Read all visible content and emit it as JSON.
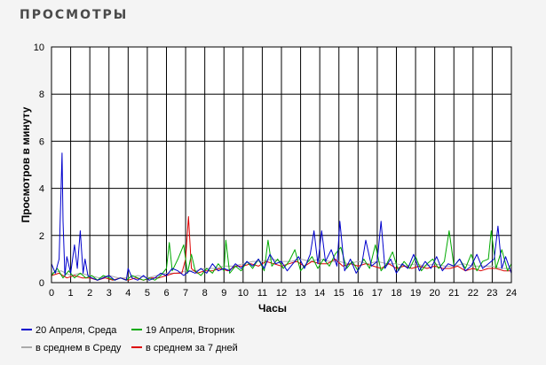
{
  "header": {
    "title": "ПРОСМОТРЫ"
  },
  "chart_data": {
    "type": "line",
    "xlabel": "Часы",
    "ylabel": "Просмотров в минуту",
    "xlim": [
      0,
      24
    ],
    "ylim": [
      0,
      10
    ],
    "x_ticks": [
      0,
      1,
      2,
      3,
      4,
      5,
      6,
      7,
      8,
      9,
      10,
      11,
      12,
      13,
      14,
      15,
      16,
      17,
      18,
      19,
      20,
      21,
      22,
      23,
      24
    ],
    "y_ticks": [
      0,
      2,
      4,
      6,
      8,
      10
    ],
    "grid": true,
    "legend_position": "bottom",
    "series": [
      {
        "name": "20 Апреля, Среда",
        "color": "#0000cc",
        "x": [
          0,
          0.2,
          0.4,
          0.55,
          0.6,
          0.7,
          0.8,
          1.0,
          1.2,
          1.35,
          1.5,
          1.65,
          1.75,
          1.9,
          2.1,
          2.4,
          2.7,
          3.0,
          3.3,
          3.6,
          3.9,
          4.0,
          4.2,
          4.5,
          4.8,
          5.1,
          5.4,
          5.7,
          6.0,
          6.3,
          6.6,
          6.9,
          7.2,
          7.5,
          7.8,
          8.1,
          8.4,
          8.7,
          9.0,
          9.3,
          9.6,
          9.9,
          10.2,
          10.5,
          10.8,
          11.1,
          11.4,
          11.7,
          12.0,
          12.3,
          12.6,
          12.9,
          13.2,
          13.5,
          13.7,
          13.9,
          14.1,
          14.3,
          14.6,
          14.9,
          15.05,
          15.3,
          15.6,
          15.9,
          16.2,
          16.4,
          16.7,
          17.0,
          17.2,
          17.4,
          17.7,
          18.0,
          18.3,
          18.6,
          18.9,
          19.2,
          19.5,
          19.8,
          20.1,
          20.4,
          20.7,
          21.0,
          21.3,
          21.6,
          21.9,
          22.2,
          22.5,
          22.8,
          23.1,
          23.3,
          23.5,
          23.7,
          24.0
        ],
        "values": [
          0.8,
          0.4,
          1.0,
          5.5,
          2.6,
          0.3,
          1.1,
          0.4,
          1.6,
          0.6,
          2.2,
          0.4,
          1.0,
          0.3,
          0.2,
          0.1,
          0.2,
          0.3,
          0.1,
          0.2,
          0.1,
          0.6,
          0.2,
          0.1,
          0.3,
          0.1,
          0.2,
          0.4,
          0.3,
          0.6,
          0.5,
          0.3,
          0.5,
          0.4,
          0.6,
          0.4,
          0.8,
          0.5,
          0.6,
          0.5,
          0.8,
          0.6,
          0.9,
          0.7,
          1.0,
          0.6,
          1.2,
          0.8,
          0.9,
          0.5,
          0.8,
          1.1,
          0.6,
          1.2,
          2.2,
          0.8,
          2.2,
          0.9,
          1.4,
          0.7,
          2.6,
          0.5,
          1.0,
          0.4,
          0.8,
          1.8,
          0.7,
          0.9,
          2.6,
          0.6,
          1.0,
          0.4,
          0.8,
          0.6,
          1.2,
          0.5,
          0.9,
          0.6,
          1.1,
          0.5,
          0.8,
          0.7,
          1.0,
          0.5,
          0.7,
          1.2,
          0.6,
          0.8,
          1.0,
          2.4,
          0.6,
          1.1,
          0.4
        ]
      },
      {
        "name": "19 Апреля, Вторник",
        "color": "#00aa00",
        "x": [
          0,
          0.3,
          0.6,
          0.9,
          1.2,
          1.5,
          1.8,
          2.1,
          2.4,
          2.7,
          3.0,
          3.3,
          3.6,
          3.9,
          4.2,
          4.5,
          4.8,
          5.1,
          5.4,
          5.7,
          6.0,
          6.15,
          6.3,
          6.6,
          6.9,
          7.1,
          7.3,
          7.5,
          7.8,
          8.1,
          8.4,
          8.7,
          9.0,
          9.1,
          9.3,
          9.6,
          9.9,
          10.2,
          10.5,
          10.8,
          11.1,
          11.3,
          11.5,
          11.8,
          12.1,
          12.4,
          12.7,
          13.0,
          13.3,
          13.6,
          13.9,
          14.2,
          14.5,
          14.8,
          15.1,
          15.4,
          15.7,
          16.0,
          16.3,
          16.6,
          16.9,
          17.2,
          17.5,
          17.8,
          18.1,
          18.4,
          18.7,
          19.0,
          19.3,
          19.6,
          19.9,
          20.2,
          20.5,
          20.75,
          21.0,
          21.3,
          21.6,
          21.9,
          22.2,
          22.5,
          22.8,
          22.95,
          23.2,
          23.5,
          23.8,
          24.0
        ],
        "values": [
          0.3,
          0.6,
          0.2,
          0.5,
          0.2,
          0.4,
          0.2,
          0.3,
          0.1,
          0.3,
          0.2,
          0.1,
          0.2,
          0.1,
          0.3,
          0.2,
          0.1,
          0.2,
          0.1,
          0.3,
          0.6,
          1.7,
          0.5,
          1.0,
          1.6,
          0.4,
          1.2,
          0.5,
          0.3,
          0.6,
          0.4,
          0.8,
          0.5,
          1.8,
          0.4,
          0.7,
          0.5,
          0.9,
          0.6,
          1.0,
          0.5,
          1.8,
          0.7,
          1.0,
          0.6,
          0.9,
          1.4,
          0.5,
          0.8,
          1.1,
          0.6,
          1.0,
          0.7,
          1.2,
          1.5,
          0.6,
          0.9,
          0.5,
          1.0,
          0.6,
          1.6,
          0.5,
          0.8,
          1.3,
          0.5,
          0.9,
          0.6,
          1.1,
          0.5,
          0.8,
          1.0,
          0.6,
          0.9,
          2.2,
          0.7,
          1.0,
          0.6,
          1.2,
          0.5,
          0.9,
          1.0,
          2.2,
          0.6,
          1.4,
          0.5,
          0.8
        ]
      },
      {
        "name": "в среднем в Среду",
        "color": "#aaaaaa",
        "x": [
          0,
          0.5,
          1.0,
          1.5,
          2.0,
          2.5,
          3.0,
          3.5,
          4.0,
          4.5,
          5.0,
          5.5,
          6.0,
          6.5,
          7.0,
          7.5,
          8.0,
          8.5,
          9.0,
          9.5,
          10.0,
          10.5,
          11.0,
          11.5,
          12.0,
          12.5,
          13.0,
          13.5,
          14.0,
          14.5,
          15.0,
          15.5,
          16.0,
          16.5,
          17.0,
          17.5,
          18.0,
          18.5,
          19.0,
          19.5,
          20.0,
          20.5,
          21.0,
          21.5,
          22.0,
          22.5,
          23.0,
          23.5,
          24.0
        ],
        "values": [
          0.4,
          0.5,
          0.3,
          0.4,
          0.3,
          0.2,
          0.3,
          0.2,
          0.2,
          0.3,
          0.2,
          0.3,
          0.4,
          0.4,
          0.5,
          0.5,
          0.6,
          0.6,
          0.7,
          0.7,
          0.8,
          0.9,
          0.9,
          1.0,
          0.9,
          0.9,
          1.0,
          0.9,
          1.0,
          0.9,
          0.9,
          0.8,
          0.9,
          0.8,
          0.9,
          0.8,
          0.8,
          0.7,
          0.8,
          0.7,
          0.8,
          0.7,
          0.7,
          0.8,
          0.7,
          0.7,
          0.7,
          0.6,
          0.6
        ]
      },
      {
        "name": "в среднем за 7 дней",
        "color": "#dd0000",
        "x": [
          0,
          0.4,
          0.8,
          1.2,
          1.6,
          2.0,
          2.4,
          2.8,
          3.2,
          3.6,
          4.0,
          4.4,
          4.8,
          5.2,
          5.6,
          6.0,
          6.4,
          6.8,
          7.0,
          7.15,
          7.3,
          7.6,
          8.0,
          8.4,
          8.8,
          9.2,
          9.6,
          10.0,
          10.4,
          10.8,
          11.2,
          11.6,
          12.0,
          12.4,
          12.8,
          13.2,
          13.6,
          14.0,
          14.4,
          14.8,
          15.2,
          15.6,
          16.0,
          16.4,
          16.8,
          17.2,
          17.6,
          18.0,
          18.4,
          18.8,
          19.2,
          19.6,
          20.0,
          20.4,
          20.8,
          21.2,
          21.6,
          22.0,
          22.4,
          22.8,
          23.2,
          23.6,
          24.0
        ],
        "values": [
          0.3,
          0.4,
          0.2,
          0.3,
          0.2,
          0.2,
          0.1,
          0.2,
          0.1,
          0.2,
          0.1,
          0.2,
          0.1,
          0.2,
          0.2,
          0.3,
          0.4,
          0.4,
          1.0,
          2.8,
          0.6,
          0.4,
          0.5,
          0.5,
          0.6,
          0.5,
          0.7,
          0.7,
          0.8,
          0.7,
          0.9,
          0.8,
          0.7,
          0.8,
          0.9,
          0.7,
          0.9,
          0.8,
          0.8,
          1.0,
          0.7,
          0.8,
          0.7,
          0.8,
          0.7,
          0.6,
          0.8,
          0.6,
          0.7,
          0.6,
          0.7,
          0.6,
          0.7,
          0.6,
          0.6,
          0.7,
          0.5,
          0.6,
          0.5,
          0.6,
          0.6,
          0.5,
          0.5
        ]
      }
    ]
  }
}
